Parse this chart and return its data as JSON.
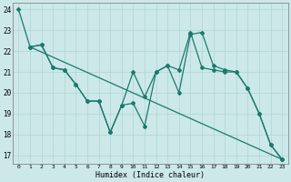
{
  "xlabel": "Humidex (Indice chaleur)",
  "background_color": "#cce8e8",
  "grid_color": "#b0d4d4",
  "line_color": "#1a7a6e",
  "xlim": [
    -0.5,
    23.5
  ],
  "ylim": [
    16.6,
    24.3
  ],
  "yticks": [
    17,
    18,
    19,
    20,
    21,
    22,
    23,
    24
  ],
  "xticks": [
    0,
    1,
    2,
    3,
    4,
    5,
    6,
    7,
    8,
    9,
    10,
    11,
    12,
    13,
    14,
    15,
    16,
    17,
    18,
    19,
    20,
    21,
    22,
    23
  ],
  "line1_x": [
    0,
    1,
    2,
    3,
    4,
    5,
    6,
    7,
    8,
    9,
    10,
    11,
    12,
    13,
    14,
    15,
    16,
    17,
    18,
    19,
    20,
    21,
    22,
    23
  ],
  "line1_y": [
    24.0,
    22.2,
    22.3,
    21.2,
    21.1,
    20.4,
    19.6,
    19.6,
    18.1,
    19.4,
    19.5,
    18.4,
    21.0,
    21.3,
    20.0,
    22.8,
    22.9,
    21.3,
    21.1,
    21.0,
    20.2,
    19.0,
    17.5,
    16.8
  ],
  "line2_x": [
    1,
    2,
    3,
    4,
    5,
    6,
    7,
    8,
    9,
    10,
    11,
    12,
    13,
    14,
    15,
    16,
    17,
    18,
    19,
    20,
    21,
    22,
    23
  ],
  "line2_y": [
    22.2,
    22.3,
    21.2,
    21.1,
    20.4,
    19.6,
    19.6,
    18.1,
    19.4,
    21.0,
    19.8,
    21.0,
    21.3,
    21.1,
    22.9,
    21.2,
    21.1,
    21.0,
    21.0,
    20.2,
    19.0,
    17.5,
    16.8
  ],
  "line3_x": [
    1,
    23
  ],
  "line3_y": [
    22.2,
    16.8
  ]
}
